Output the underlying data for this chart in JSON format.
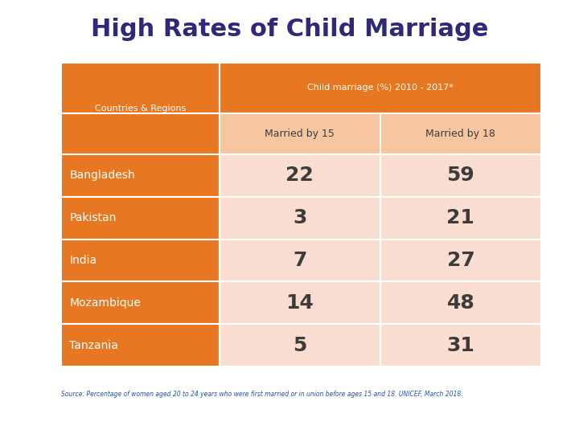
{
  "title": "High Rates of Child Marriage",
  "title_color": "#2E2A7A",
  "title_fontsize": 22,
  "header_top": "Child marriage (%) 2010 - 2017*",
  "header_col1": "Married by 15",
  "header_col2": "Married by 18",
  "col0_label": "Countries & Regions",
  "countries": [
    "Bangladesh",
    "Pakistan",
    "India",
    "Mozambique",
    "Tanzania"
  ],
  "married_by_15": [
    22,
    3,
    7,
    14,
    5
  ],
  "married_by_18": [
    59,
    21,
    27,
    48,
    31
  ],
  "orange_dark": "#E87722",
  "orange_light": "#F5C6A0",
  "pink_light": "#F9DDD0",
  "white": "#FFFFFF",
  "text_white": "#FFFFFF",
  "text_dark": "#3C3C3C",
  "text_orange": "#E87722",
  "source_text": "Source: Percentage of women aged 20 to 24 years who were first married or in union before ages 15 and 18. UNICEF, March 2018.",
  "background_color": "#FFFFFF"
}
